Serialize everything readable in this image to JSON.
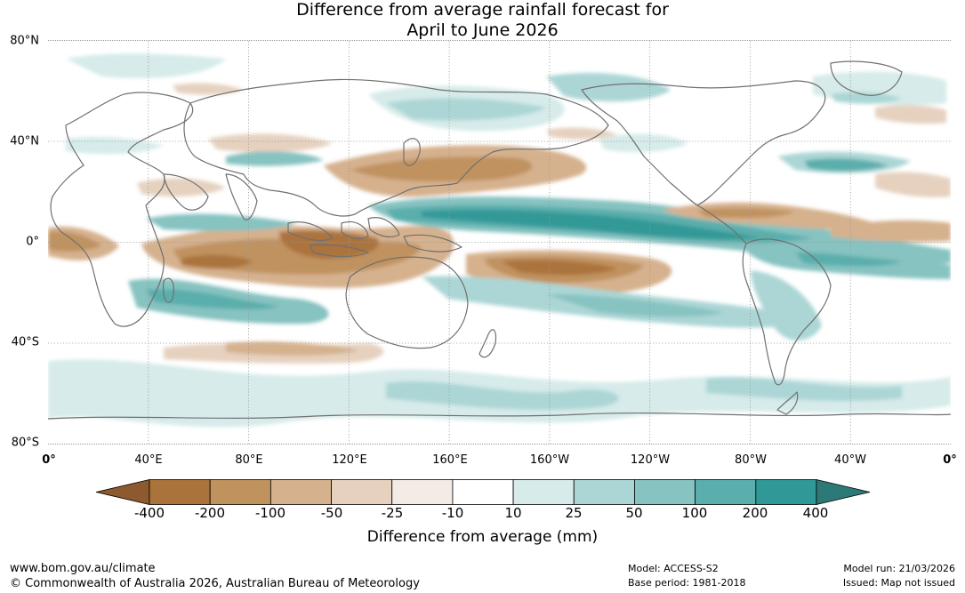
{
  "title_line1": "Difference from average rainfall forecast for",
  "title_line2": "April to June 2026",
  "map": {
    "latitude_labels": [
      "80°N",
      "40°N",
      "0°",
      "40°S",
      "80°S"
    ],
    "longitude_labels": [
      "0°",
      "40°E",
      "80°E",
      "120°E",
      "160°E",
      "160°W",
      "120°W",
      "80°W",
      "40°W",
      "0°"
    ],
    "gridlines": "dotted",
    "projection": "equirectangular"
  },
  "legend": {
    "title": "Difference from average (mm)",
    "tick_labels": [
      "-400",
      "-200",
      "-100",
      "-50",
      "-25",
      "-10",
      "10",
      "25",
      "50",
      "100",
      "200",
      "400"
    ],
    "bins": [
      {
        "range": "< -400",
        "color": "#8c5a2e"
      },
      {
        "range": "-400 to -200",
        "color": "#ab733c"
      },
      {
        "range": "-200 to -100",
        "color": "#c0925e"
      },
      {
        "range": "-100 to -50",
        "color": "#d5b18e"
      },
      {
        "range": "-50 to -25",
        "color": "#e6d1bf"
      },
      {
        "range": "-25 to -10",
        "color": "#f3ece6"
      },
      {
        "range": "-10 to 10",
        "color": "#ffffff"
      },
      {
        "range": "10 to 25",
        "color": "#d6ebea"
      },
      {
        "range": "25 to 50",
        "color": "#acd6d5"
      },
      {
        "range": "50 to 100",
        "color": "#86c3c1"
      },
      {
        "range": "100 to 200",
        "color": "#5aaeac"
      },
      {
        "range": "200 to 400",
        "color": "#309997"
      },
      {
        "range": "> 400",
        "color": "#2b7a78"
      }
    ]
  },
  "footer": {
    "url": "www.bom.gov.au/climate",
    "copyright": "© Commonwealth of Australia 2026, Australian Bureau of Meteorology",
    "model": "Model: ACCESS-S2",
    "base_period": "Base period: 1981-2018",
    "model_run": "Model run: 21/03/2026",
    "issued": "Issued: Map not issued"
  }
}
